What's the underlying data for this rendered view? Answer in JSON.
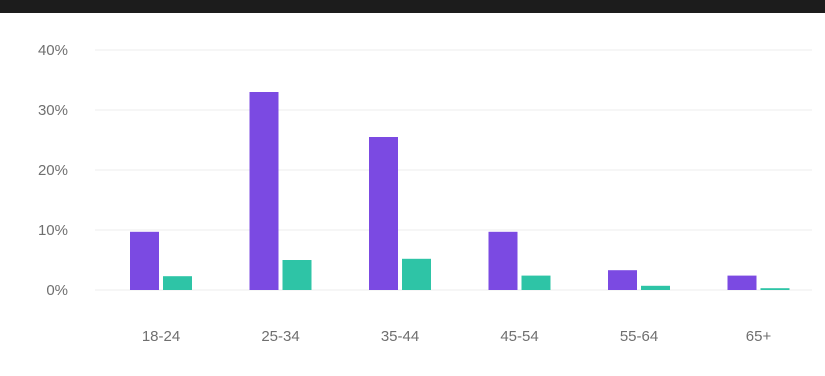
{
  "chart_data": {
    "type": "bar",
    "categories": [
      "18-24",
      "25-34",
      "35-44",
      "45-54",
      "55-64",
      "65+"
    ],
    "series": [
      {
        "values": [
          9.7,
          33.0,
          25.5,
          9.7,
          3.3,
          2.4
        ]
      },
      {
        "values": [
          2.3,
          5.0,
          5.2,
          2.4,
          0.7,
          0.3
        ]
      }
    ],
    "yticks": [
      "0%",
      "10%",
      "20%",
      "30%",
      "40%"
    ],
    "ylim": [
      0,
      40
    ],
    "grid": true,
    "colors": {
      "series1": "#7b4ae2",
      "series2": "#2ec4a6",
      "grid": "#ececec"
    }
  }
}
